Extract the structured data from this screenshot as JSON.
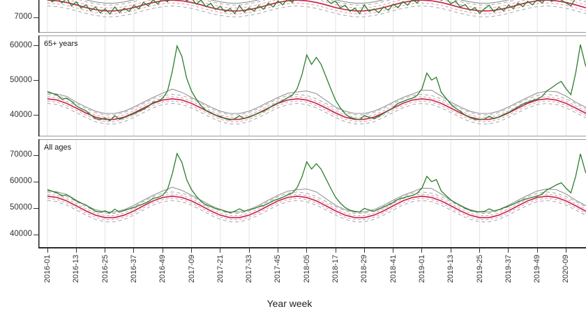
{
  "chart_data": {
    "type": "line",
    "title": "",
    "xlabel": "Year week",
    "x_start": "2016-01",
    "x_tick_step_weeks": 12,
    "x_ticks": [
      "2016-01",
      "2016-13",
      "2016-25",
      "2016-37",
      "2016-49",
      "2017-09",
      "2017-21",
      "2017-33",
      "2017-45",
      "2018-05",
      "2018-17",
      "2018-29",
      "2018-41",
      "2019-01",
      "2019-13",
      "2019-25",
      "2019-37",
      "2019-49",
      "2020-09"
    ],
    "legend": "none",
    "grid": "vertical-only",
    "colors": {
      "observed": "#2a7e2a",
      "baseline": "#c5294d",
      "inner_band": "#e096ae",
      "outer_band": "#a6a6a6",
      "threshold": "#949494",
      "gridline": "#e3e3e3",
      "axis": "#333333",
      "text": "#333333",
      "background": "#ffffff"
    },
    "panels": [
      {
        "label": "",
        "note": "top panel cut off by screenshot",
        "y_ticks": [
          7000
        ],
        "ylim": [
          6580,
          7472
        ],
        "inner_band_offset": 80,
        "outer_band_offset": 160,
        "observed_step_weeks": 2,
        "baseline_step_weeks": 4,
        "observed": [
          7560,
          7420,
          7530,
          7390,
          7520,
          7310,
          7420,
          7250,
          7340,
          7180,
          7280,
          7120,
          7230,
          7090,
          7280,
          7130,
          7250,
          7160,
          7330,
          7230,
          7410,
          7310,
          7480,
          7360,
          7530,
          7420,
          7650,
          7780,
          7600,
          7450,
          7520,
          7360,
          7470,
          7290,
          7380,
          7210,
          7300,
          7150,
          7240,
          7100,
          7320,
          7140,
          7260,
          7170,
          7320,
          7220,
          7390,
          7280,
          7450,
          7340,
          7510,
          7400,
          7620,
          7550,
          7750,
          7640,
          7720,
          7580,
          7500,
          7380,
          7440,
          7260,
          7330,
          7160,
          7250,
          7100,
          7340,
          7160,
          7230,
          7120,
          7290,
          7190,
          7360,
          7260,
          7430,
          7330,
          7490,
          7390,
          7560,
          7680,
          7550,
          7620,
          7460,
          7530,
          7370,
          7440,
          7280,
          7350,
          7190,
          7260,
          7110,
          7230,
          7330,
          7150,
          7270,
          7180,
          7330,
          7240,
          7390,
          7290,
          7440,
          7340,
          7490,
          7390,
          7540,
          7430,
          7560,
          7470,
          7390,
          7310,
          7520,
          7900,
          7700,
          7600
        ],
        "baseline": [
          7470,
          7450,
          7405,
          7340,
          7265,
          7210,
          7175,
          7175,
          7210,
          7265,
          7340,
          7405,
          7450,
          7470,
          7450,
          7405,
          7340,
          7265,
          7210,
          7175,
          7175,
          7210,
          7265,
          7340,
          7405,
          7450,
          7470,
          7450,
          7405,
          7340,
          7265,
          7210,
          7175,
          7175,
          7210,
          7265,
          7340,
          7405,
          7450,
          7470,
          7450,
          7405,
          7340,
          7265,
          7210,
          7175,
          7175,
          7210,
          7265,
          7340,
          7405,
          7450,
          7470,
          7450,
          7405,
          7340,
          7265,
          7210
        ],
        "threshold_upper": [
          7680,
          7660,
          7615,
          7550,
          7475,
          7420,
          7385,
          7385,
          7420,
          7475,
          7550,
          7615,
          7660,
          7680,
          7660,
          7615,
          7550,
          7475,
          7420,
          7385,
          7385,
          7420,
          7475,
          7550,
          7615,
          7660,
          7680,
          7660,
          7615,
          7550,
          7475,
          7420,
          7385,
          7385,
          7420,
          7475,
          7550,
          7615,
          7660,
          7680,
          7660,
          7615,
          7550,
          7475,
          7420,
          7385,
          7385,
          7420,
          7475,
          7550,
          7615,
          7660,
          7680,
          7660,
          7615,
          7550,
          7475,
          7420
        ]
      },
      {
        "label": "65+ years",
        "y_ticks": [
          60000,
          50000,
          40000
        ],
        "ylim": [
          33800,
          62800
        ],
        "inner_band_offset": 620,
        "outer_band_offset": 1300,
        "observed_step_weeks": 2,
        "baseline_step_weeks": 4,
        "observed": [
          46700,
          46200,
          45700,
          44500,
          44800,
          43900,
          42600,
          41800,
          41200,
          40000,
          38900,
          38600,
          39100,
          38300,
          39700,
          38700,
          39200,
          39800,
          40300,
          41000,
          41600,
          42400,
          43600,
          43900,
          44800,
          46800,
          52500,
          59800,
          56800,
          50500,
          46800,
          44500,
          42600,
          41300,
          40700,
          39900,
          39600,
          38900,
          38500,
          38900,
          39700,
          38900,
          39500,
          39900,
          40600,
          41000,
          41800,
          42800,
          43400,
          44100,
          44900,
          45600,
          47500,
          51500,
          57200,
          54500,
          56500,
          54500,
          51000,
          47500,
          44200,
          42000,
          40300,
          39300,
          38900,
          38600,
          39800,
          39300,
          38900,
          39600,
          40400,
          41200,
          42100,
          43300,
          43800,
          44400,
          44800,
          45600,
          47500,
          52000,
          50000,
          50800,
          46500,
          44800,
          43100,
          41900,
          41000,
          39900,
          39200,
          38700,
          38600,
          38800,
          39600,
          38900,
          39400,
          40100,
          40700,
          41500,
          42300,
          43100,
          43600,
          44100,
          44500,
          45300,
          46900,
          47800,
          48800,
          49600,
          47500,
          45800,
          52000,
          60200,
          54500,
          51000
        ],
        "baseline": [
          44600,
          44260,
          43300,
          41960,
          40540,
          39350,
          38690,
          38690,
          39350,
          40540,
          41960,
          43300,
          44260,
          44600,
          44260,
          43300,
          41960,
          40540,
          39350,
          38690,
          38690,
          39350,
          40540,
          41960,
          43300,
          44260,
          44600,
          44260,
          43300,
          41960,
          40540,
          39350,
          38690,
          38690,
          39350,
          40540,
          41960,
          43300,
          44260,
          44600,
          44260,
          43300,
          41960,
          40540,
          39350,
          38690,
          38690,
          39350,
          40540,
          41960,
          43300,
          44260,
          44600,
          44260,
          43300,
          41960,
          40540,
          39350
        ],
        "threshold_upper": [
          46300,
          45960,
          45300,
          43660,
          42240,
          41050,
          40390,
          40390,
          41050,
          42240,
          43660,
          45000,
          46260,
          47400,
          46460,
          45000,
          43660,
          42240,
          41050,
          40390,
          40390,
          41050,
          42240,
          43660,
          45000,
          46160,
          46600,
          46860,
          46100,
          44160,
          42240,
          41050,
          40390,
          40390,
          41050,
          42240,
          43660,
          45000,
          45960,
          47100,
          47060,
          45400,
          43660,
          42240,
          41050,
          40390,
          40390,
          41050,
          42240,
          43660,
          45000,
          46260,
          46800,
          46660,
          45400,
          43660,
          42240,
          41050
        ]
      },
      {
        "label": "All ages",
        "y_ticks": [
          70000,
          60000,
          50000,
          40000
        ],
        "ylim": [
          35000,
          76050
        ],
        "inner_band_offset": 780,
        "outer_band_offset": 1600,
        "observed_step_weeks": 2,
        "baseline_step_weeks": 4,
        "observed": [
          57000,
          56400,
          55800,
          54600,
          55000,
          54000,
          52700,
          51900,
          51200,
          50000,
          48800,
          48500,
          49000,
          48100,
          49600,
          48500,
          49100,
          49700,
          50200,
          51000,
          51600,
          52400,
          53700,
          54000,
          54900,
          57000,
          63000,
          70600,
          67300,
          60800,
          57000,
          54500,
          52500,
          51200,
          50600,
          49800,
          49500,
          48800,
          48300,
          48800,
          49700,
          48800,
          49400,
          49800,
          50500,
          51000,
          51800,
          52800,
          53400,
          54100,
          55000,
          55700,
          57700,
          61800,
          67500,
          64800,
          66800,
          64700,
          61100,
          57500,
          54100,
          51900,
          50200,
          49200,
          48800,
          48500,
          49900,
          49300,
          48800,
          49600,
          50400,
          51200,
          52100,
          53300,
          53800,
          54400,
          54800,
          55600,
          57600,
          62000,
          60000,
          60800,
          56500,
          54800,
          53100,
          51900,
          51000,
          49900,
          49200,
          48700,
          48600,
          48800,
          49700,
          48900,
          49400,
          50100,
          50700,
          51500,
          52300,
          53100,
          53600,
          54100,
          54500,
          55300,
          56900,
          57800,
          58800,
          59600,
          57500,
          55800,
          62000,
          70500,
          64000,
          60000
        ],
        "baseline": [
          54500,
          54030,
          52730,
          50890,
          48940,
          47330,
          46420,
          46420,
          47330,
          48940,
          50890,
          52730,
          54030,
          54500,
          54030,
          52730,
          50890,
          48940,
          47330,
          46420,
          46420,
          47330,
          48940,
          50890,
          52730,
          54030,
          54500,
          54030,
          52730,
          50890,
          48940,
          47330,
          46420,
          46420,
          47330,
          48940,
          50890,
          52730,
          54030,
          54500,
          54030,
          52730,
          50890,
          48940,
          47330,
          46420,
          46420,
          47330,
          48940,
          50890,
          52730,
          54030,
          54500,
          54030,
          52730,
          50890,
          48940,
          47330
        ],
        "threshold_upper": [
          56600,
          56130,
          55180,
          52990,
          51040,
          49430,
          48520,
          48520,
          49430,
          51040,
          52990,
          54830,
          56480,
          57900,
          56730,
          54830,
          52990,
          51040,
          49430,
          48520,
          48520,
          49430,
          51040,
          52990,
          54830,
          56380,
          56950,
          57230,
          56130,
          53590,
          51040,
          49430,
          48520,
          48520,
          49430,
          51040,
          52990,
          54830,
          56130,
          57550,
          57430,
          55330,
          52990,
          51040,
          49430,
          48520,
          48520,
          49430,
          51040,
          52990,
          54830,
          56480,
          57200,
          56980,
          55330,
          52990,
          51040,
          49430
        ]
      }
    ]
  }
}
